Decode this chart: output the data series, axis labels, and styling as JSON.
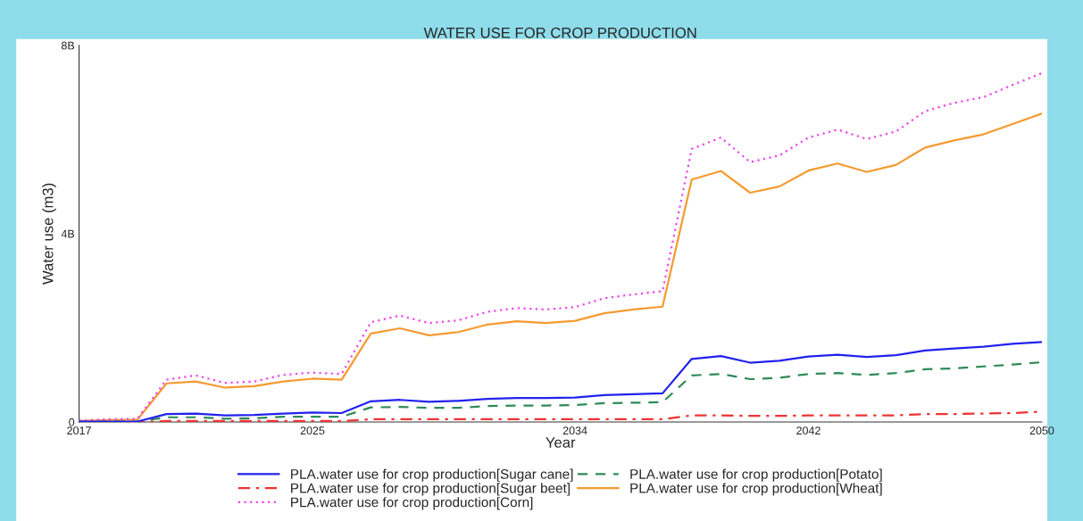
{
  "chart_data": {
    "type": "line",
    "title": "WATER USE FOR CROP PRODUCTION",
    "xlabel": "Year",
    "ylabel": "Water use (m3)",
    "x": [
      2017,
      2018,
      2019,
      2020,
      2021,
      2022,
      2023,
      2024,
      2025,
      2026,
      2027,
      2028,
      2029,
      2030,
      2031,
      2032,
      2033,
      2034,
      2035,
      2036,
      2037,
      2038,
      2039,
      2040,
      2041,
      2042,
      2043,
      2044,
      2045,
      2046,
      2047,
      2048,
      2049,
      2050
    ],
    "xlim": [
      2017,
      2050
    ],
    "xticks": [
      2017,
      2025,
      2034,
      2042,
      2050
    ],
    "ylim": [
      0,
      8
    ],
    "yticks": [
      {
        "value": 0,
        "label": "0"
      },
      {
        "value": 4,
        "label": "4B"
      },
      {
        "value": 8,
        "label": "8B"
      }
    ],
    "grid": false,
    "legend": "bottom",
    "marker": "none",
    "series": [
      {
        "name": "PLA.water use for crop production[Sugar cane]",
        "color": "#2222ee",
        "line_style": "solid",
        "values": [
          0.01,
          0.01,
          0.01,
          0.17,
          0.18,
          0.14,
          0.15,
          0.18,
          0.2,
          0.19,
          0.44,
          0.47,
          0.43,
          0.45,
          0.49,
          0.51,
          0.51,
          0.52,
          0.57,
          0.59,
          0.61,
          1.34,
          1.4,
          1.26,
          1.3,
          1.39,
          1.43,
          1.38,
          1.42,
          1.52,
          1.56,
          1.6,
          1.66,
          1.7
        ]
      },
      {
        "name": "PLA.water use for crop production[Sugar beet]",
        "color": "#ee3333",
        "line_style": "dashdot",
        "values": [
          0.0,
          0.0,
          0.0,
          0.02,
          0.02,
          0.02,
          0.02,
          0.02,
          0.02,
          0.02,
          0.06,
          0.06,
          0.06,
          0.06,
          0.06,
          0.06,
          0.06,
          0.06,
          0.06,
          0.06,
          0.06,
          0.14,
          0.14,
          0.13,
          0.13,
          0.14,
          0.14,
          0.14,
          0.14,
          0.17,
          0.17,
          0.18,
          0.19,
          0.22
        ]
      },
      {
        "name": "PLA.water use for crop production[Corn]",
        "color": "#ee44ee",
        "line_style": "dotted",
        "values": [
          0.03,
          0.06,
          0.07,
          0.9,
          0.99,
          0.83,
          0.86,
          1.0,
          1.05,
          1.02,
          2.12,
          2.26,
          2.1,
          2.16,
          2.34,
          2.42,
          2.39,
          2.44,
          2.63,
          2.71,
          2.78,
          5.8,
          6.04,
          5.52,
          5.66,
          6.04,
          6.21,
          6.01,
          6.17,
          6.6,
          6.78,
          6.9,
          7.16,
          7.41
        ]
      },
      {
        "name": "PLA.water use for crop production[Potato]",
        "color": "#2e8b57",
        "line_style": "dashed",
        "values": [
          0.01,
          0.01,
          0.01,
          0.1,
          0.1,
          0.07,
          0.08,
          0.11,
          0.11,
          0.11,
          0.31,
          0.32,
          0.3,
          0.3,
          0.34,
          0.35,
          0.35,
          0.36,
          0.4,
          0.41,
          0.42,
          0.99,
          1.02,
          0.91,
          0.94,
          1.02,
          1.04,
          1.0,
          1.04,
          1.12,
          1.14,
          1.18,
          1.22,
          1.27
        ]
      },
      {
        "name": "PLA.water use for crop production[Wheat]",
        "color": "#f59a30",
        "line_style": "solid",
        "values": [
          0.02,
          0.04,
          0.05,
          0.82,
          0.86,
          0.73,
          0.76,
          0.86,
          0.92,
          0.9,
          1.88,
          1.99,
          1.84,
          1.91,
          2.07,
          2.14,
          2.1,
          2.15,
          2.31,
          2.39,
          2.45,
          5.15,
          5.33,
          4.87,
          5.0,
          5.34,
          5.49,
          5.31,
          5.46,
          5.83,
          5.98,
          6.11,
          6.33,
          6.55
        ]
      }
    ]
  }
}
